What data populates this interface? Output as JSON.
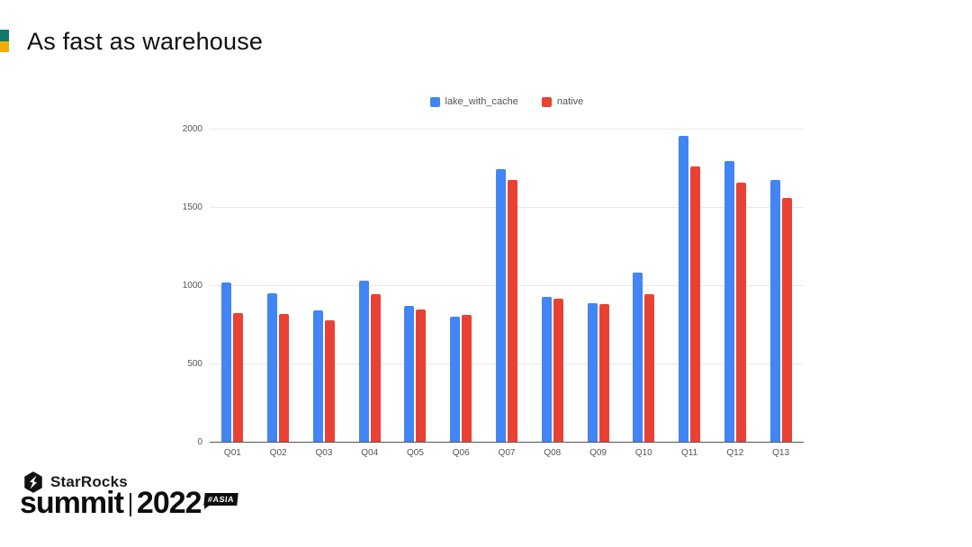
{
  "slide": {
    "title": "As fast as warehouse",
    "bullet_top_color": "#10796d",
    "bullet_bottom_color": "#f0ae00"
  },
  "chart_data": {
    "type": "bar",
    "title": "",
    "categories": [
      "Q01",
      "Q02",
      "Q03",
      "Q04",
      "Q05",
      "Q06",
      "Q07",
      "Q08",
      "Q09",
      "Q10",
      "Q11",
      "Q12",
      "Q13"
    ],
    "series": [
      {
        "name": "lake_with_cache",
        "color": "#4285f4",
        "values": [
          1020,
          950,
          840,
          1030,
          870,
          800,
          1740,
          925,
          885,
          1080,
          1955,
          1795,
          1670
        ]
      },
      {
        "name": "native",
        "color": "#e94235",
        "values": [
          820,
          815,
          775,
          940,
          845,
          810,
          1670,
          915,
          880,
          940,
          1760,
          1655,
          1555
        ]
      }
    ],
    "xlabel": "",
    "ylabel": "",
    "ylim": [
      0,
      2000
    ],
    "yticks": [
      0,
      500,
      1000,
      1500,
      2000
    ],
    "grid": true,
    "legend_position": "top"
  },
  "footer": {
    "brand": "StarRocks",
    "event_word": "summit",
    "event_year": "2022",
    "badge": "#ASIA"
  }
}
